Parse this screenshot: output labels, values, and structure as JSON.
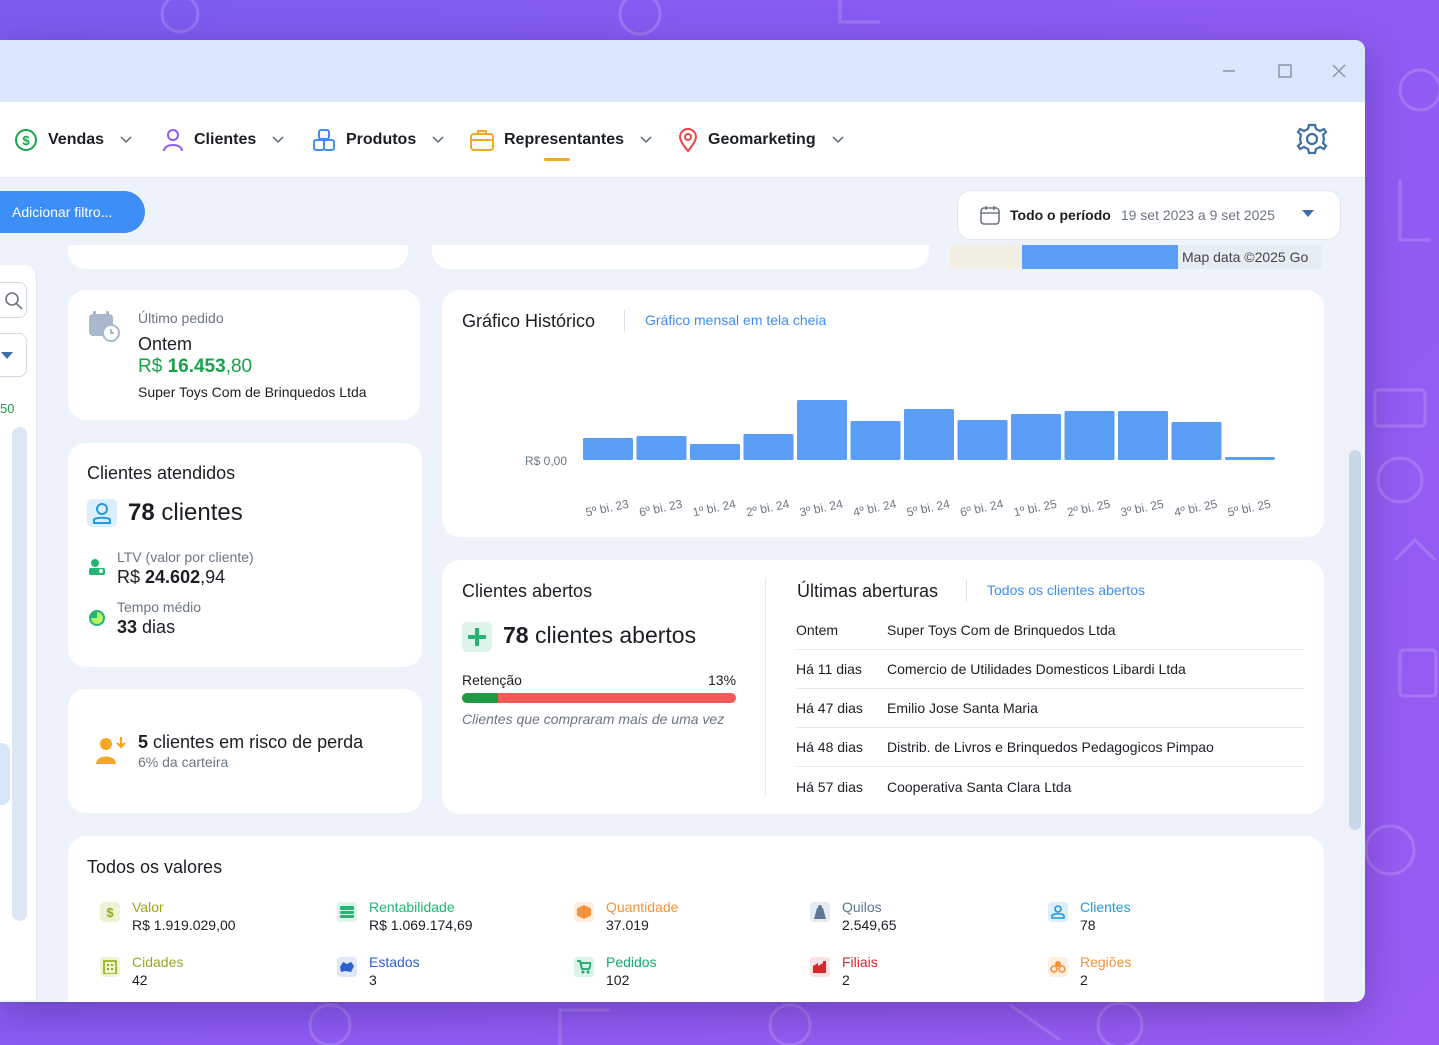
{
  "nav": {
    "items": [
      {
        "label": "Vendas",
        "icon": "dollar-circle-icon",
        "color": "#17a34a"
      },
      {
        "label": "Clientes",
        "icon": "user-icon",
        "color": "#8b5cf6"
      },
      {
        "label": "Produtos",
        "icon": "boxes-icon",
        "color": "#3e8ef7"
      },
      {
        "label": "Representantes",
        "icon": "briefcase-icon",
        "color": "#f5a623"
      },
      {
        "label": "Geomarketing",
        "icon": "map-pin-icon",
        "color": "#ef4444"
      }
    ],
    "active": "Representantes"
  },
  "filter": {
    "add_label": "Adicionar filtro..."
  },
  "period": {
    "label": "Todo o período",
    "range": "19 set 2023 a 9 set 2025"
  },
  "map": {
    "attribution": "Map data ©2025 Go"
  },
  "sidebar": {
    "partial_value": "50"
  },
  "last_order": {
    "label": "Último pedido",
    "when": "Ontem",
    "currency": "R$",
    "amount_int": "16.453",
    "amount_dec": ",80",
    "customer": "Super Toys Com de Brinquedos Ltda"
  },
  "clients_served": {
    "title": "Clientes atendidos",
    "count": "78",
    "count_unit": "clientes",
    "ltv_label": "LTV (valor por cliente)",
    "ltv_currency": "R$",
    "ltv_int": "24.602",
    "ltv_dec": ",94",
    "avg_time_label": "Tempo médio",
    "avg_time_value": "33",
    "avg_time_unit": "dias"
  },
  "risk": {
    "count": "5",
    "text": "clientes em risco de perda",
    "sub": "6% da carteira"
  },
  "history": {
    "title": "Gráfico Histórico",
    "link": "Gráfico mensal em tela cheia"
  },
  "chart_data": {
    "type": "bar",
    "categories": [
      "5º bi. 23",
      "6º bi. 23",
      "1º bi. 24",
      "2º bi. 24",
      "3º bi. 24",
      "4º bi. 24",
      "5º bi. 24",
      "6º bi. 24",
      "1º bi. 25",
      "2º bi. 25",
      "3º bi. 25",
      "4º bi. 25",
      "5º bi. 25"
    ],
    "values": [
      22,
      24,
      16,
      26,
      60,
      39,
      51,
      40,
      46,
      49,
      49,
      38,
      3
    ],
    "ytick_label": "R$ 0,00",
    "ylim": [
      0,
      60
    ],
    "color": "#5a9ef8"
  },
  "open_clients": {
    "title": "Clientes abertos",
    "count": "78",
    "count_unit": "clientes abertos",
    "retention_label": "Retenção",
    "retention_value": "13%",
    "retention_fraction": 0.13,
    "retention_note": "Clientes que compraram mais de uma vez"
  },
  "last_openings": {
    "title": "Últimas aberturas",
    "link": "Todos os clientes abertos",
    "rows": [
      {
        "when": "Ontem",
        "who": "Super Toys Com de Brinquedos Ltda"
      },
      {
        "when": "Há 11 dias",
        "who": "Comercio de Utilidades Domesticos Libardi Ltda"
      },
      {
        "when": "Há 47 dias",
        "who": "Emilio Jose Santa Maria"
      },
      {
        "when": "Há 48 dias",
        "who": "Distrib. de Livros e Brinquedos Pedagogicos Pimpao"
      },
      {
        "when": "Há 57 dias",
        "who": "Cooperativa Santa Clara Ltda"
      }
    ]
  },
  "all_values": {
    "title": "Todos os valores",
    "items": [
      {
        "label": "Valor",
        "value": "R$ 1.919.029,00",
        "color": "#9aa71a"
      },
      {
        "label": "Rentabilidade",
        "value": "R$ 1.069.174,69",
        "color": "#22b573"
      },
      {
        "label": "Quantidade",
        "value": "37.019",
        "color": "#f5923e"
      },
      {
        "label": "Quilos",
        "value": "2.549,65",
        "color": "#5f7796"
      },
      {
        "label": "Clientes",
        "value": "78",
        "color": "#1f9bd7"
      },
      {
        "label": "Cidades",
        "value": "42",
        "color": "#9aa71a"
      },
      {
        "label": "Estados",
        "value": "3",
        "color": "#2f5fd0"
      },
      {
        "label": "Pedidos",
        "value": "102",
        "color": "#14a86a"
      },
      {
        "label": "Filiais",
        "value": "2",
        "color": "#d9262b"
      },
      {
        "label": "Regiões",
        "value": "2",
        "color": "#f5923e"
      }
    ]
  }
}
